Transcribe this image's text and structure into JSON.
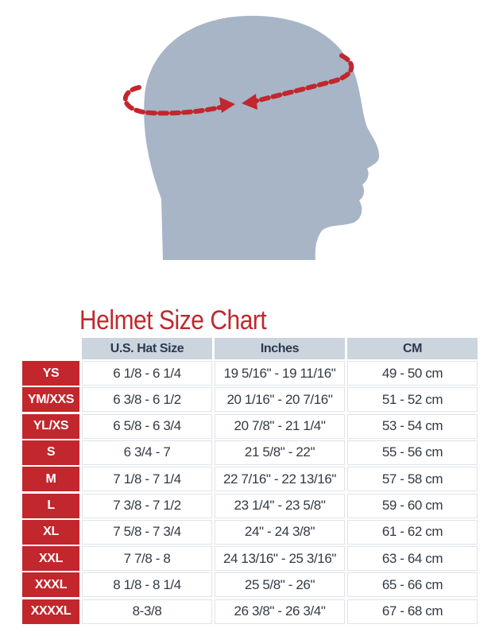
{
  "title": "Helmet Size Chart",
  "colors": {
    "accent": "#c1272d",
    "header_bg": "#ccd4de",
    "head_silhouette": "#a7b5c6"
  },
  "illustration": {
    "icon": "head-circumference-measure-icon"
  },
  "table": {
    "headers": [
      "U.S. Hat Size",
      "Inches",
      "CM"
    ],
    "rows": [
      {
        "size": "YS",
        "hat": "6 1/8 - 6 1/4",
        "inches": "19 5/16\" - 19 11/16\"",
        "cm": "49 - 50 cm"
      },
      {
        "size": "YM/XXS",
        "hat": "6 3/8 - 6 1/2",
        "inches": "20 1/16\" - 20 7/16\"",
        "cm": "51 - 52 cm"
      },
      {
        "size": "YL/XS",
        "hat": "6 5/8 - 6 3/4",
        "inches": "20 7/8\" - 21 1/4\"",
        "cm": "53 - 54 cm"
      },
      {
        "size": "S",
        "hat": "6 3/4 - 7",
        "inches": "21 5/8\" - 22\"",
        "cm": "55 - 56 cm"
      },
      {
        "size": "M",
        "hat": "7 1/8 - 7 1/4",
        "inches": "22 7/16\" - 22 13/16\"",
        "cm": "57 - 58 cm"
      },
      {
        "size": "L",
        "hat": "7 3/8 - 7 1/2",
        "inches": "23 1/4\" - 23 5/8\"",
        "cm": "59 - 60 cm"
      },
      {
        "size": "XL",
        "hat": "7 5/8 - 7 3/4",
        "inches": "24\" - 24 3/8\"",
        "cm": "61 - 62 cm"
      },
      {
        "size": "XXL",
        "hat": "7 7/8 - 8",
        "inches": "24 13/16\" - 25 3/16\"",
        "cm": "63 - 64 cm"
      },
      {
        "size": "XXXL",
        "hat": "8 1/8 - 8 1/4",
        "inches": "25 5/8\" - 26\"",
        "cm": "65 - 66 cm"
      },
      {
        "size": "XXXXL",
        "hat": "8-3/8",
        "inches": "26 3/8\" - 26 3/4\"",
        "cm": "67 - 68 cm"
      }
    ]
  }
}
